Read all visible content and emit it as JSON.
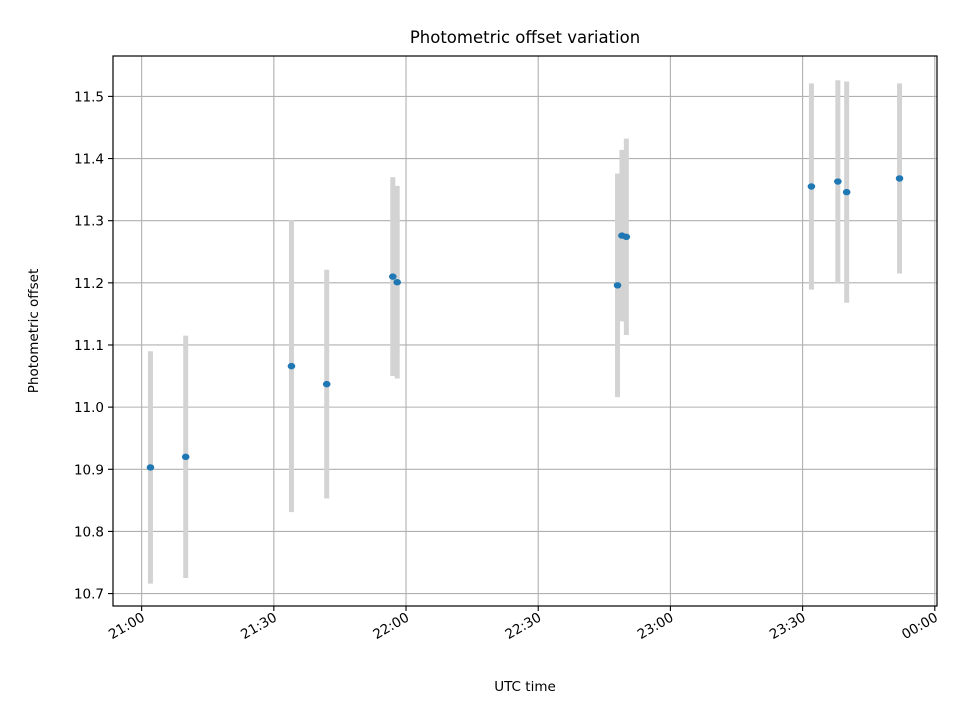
{
  "chart_data": {
    "type": "scatter",
    "title": "Photometric offset variation",
    "xlabel": "UTC time",
    "ylabel": "Photometric offset",
    "x_axis": {
      "kind": "time",
      "range_minutes_from_2100": [
        -6.5,
        180.5
      ],
      "ticks": [
        {
          "label": "21:00",
          "minutes_from_2100": 0
        },
        {
          "label": "21:30",
          "minutes_from_2100": 30
        },
        {
          "label": "22:00",
          "minutes_from_2100": 60
        },
        {
          "label": "22:30",
          "minutes_from_2100": 90
        },
        {
          "label": "23:00",
          "minutes_from_2100": 120
        },
        {
          "label": "23:30",
          "minutes_from_2100": 150
        },
        {
          "label": "00:00",
          "minutes_from_2100": 180
        }
      ]
    },
    "ylim": [
      10.68,
      11.565
    ],
    "y_ticks": [
      10.7,
      10.8,
      10.9,
      11.0,
      11.1,
      11.2,
      11.3,
      11.4,
      11.5
    ],
    "y_tick_labels": [
      "10.7",
      "10.8",
      "10.9",
      "11.0",
      "11.1",
      "11.2",
      "11.3",
      "11.4",
      "11.5"
    ],
    "grid": true,
    "colors": {
      "marker": "#1f77b4",
      "errorbar": "#d3d3d3",
      "grid": "#b0b0b0"
    },
    "points": [
      {
        "time": "21:02",
        "y": 10.903,
        "yerr": 0.187
      },
      {
        "time": "21:10",
        "y": 10.92,
        "yerr": 0.195
      },
      {
        "time": "21:34",
        "y": 11.066,
        "yerr": 0.235
      },
      {
        "time": "21:42",
        "y": 11.037,
        "yerr": 0.184
      },
      {
        "time": "21:57",
        "y": 11.21,
        "yerr": 0.16
      },
      {
        "time": "21:58",
        "y": 11.201,
        "yerr": 0.155
      },
      {
        "time": "22:48",
        "y": 11.196,
        "yerr": 0.18
      },
      {
        "time": "22:49",
        "y": 11.276,
        "yerr": 0.138
      },
      {
        "time": "22:50",
        "y": 11.274,
        "yerr": 0.158
      },
      {
        "time": "23:32",
        "y": 11.355,
        "yerr": 0.166
      },
      {
        "time": "23:38",
        "y": 11.363,
        "yerr": 0.163
      },
      {
        "time": "23:40",
        "y": 11.346,
        "yerr": 0.178
      },
      {
        "time": "23:52",
        "y": 11.368,
        "yerr": 0.153
      }
    ]
  }
}
